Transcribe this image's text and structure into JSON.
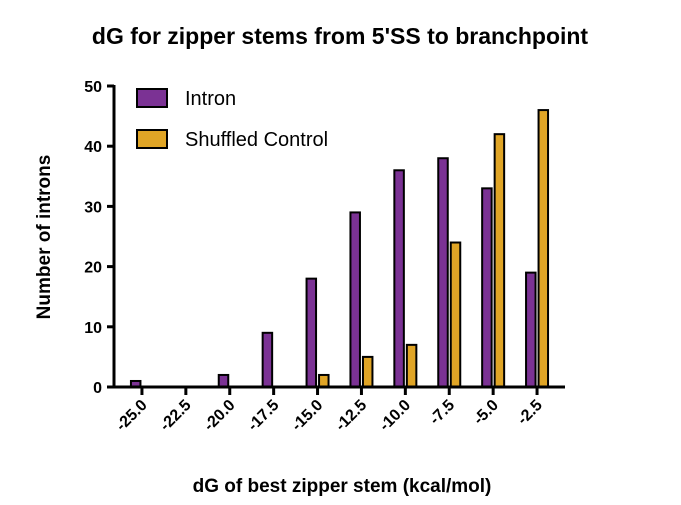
{
  "chart_data": {
    "type": "bar",
    "title": "dG for zipper stems from 5'SS to branchpoint",
    "xlabel": "dG of best zipper stem (kcal/mol)",
    "ylabel": "Number of introns",
    "categories": [
      "-25.0",
      "-22.5",
      "-20.0",
      "-17.5",
      "-15.0",
      "-12.5",
      "-10.0",
      "-7.5",
      "-5.0",
      "-2.5"
    ],
    "series": [
      {
        "name": "Intron",
        "color": "#7B3294",
        "values": [
          1,
          0,
          2,
          9,
          18,
          29,
          36,
          38,
          33,
          19
        ]
      },
      {
        "name": "Shuffled Control",
        "color": "#E0A526",
        "values": [
          0,
          0,
          0,
          0,
          2,
          5,
          7,
          24,
          42,
          46
        ]
      }
    ],
    "ylim": [
      0,
      50
    ],
    "yticks": [
      0,
      10,
      20,
      30,
      40,
      50
    ],
    "grid": false,
    "legend": "top-left"
  }
}
